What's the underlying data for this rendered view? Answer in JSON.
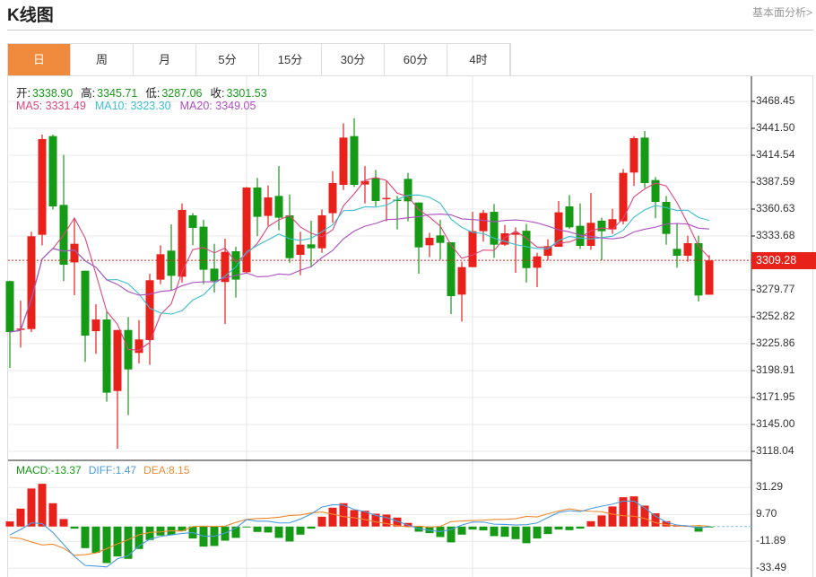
{
  "header": {
    "title": "K线图",
    "link": "基本面分析>"
  },
  "tabs": [
    {
      "label": "日",
      "active": true
    },
    {
      "label": "周"
    },
    {
      "label": "月"
    },
    {
      "label": "5分"
    },
    {
      "label": "15分"
    },
    {
      "label": "30分"
    },
    {
      "label": "60分"
    },
    {
      "label": "4时"
    }
  ],
  "ohlc_legend": {
    "open_label": "开:",
    "open": "3338.90",
    "high_label": "高:",
    "high": "3345.71",
    "low_label": "低:",
    "low": "3287.06",
    "close_label": "收:",
    "close": "3301.53"
  },
  "ma_legend": {
    "ma5": "MA5: 3331.49",
    "ma10": "MA10: 3323.30",
    "ma20": "MA20: 3349.05"
  },
  "macd_legend": {
    "macd": "MACD:-13.37",
    "diff": "DIFF:1.47",
    "dea": "DEA:8.15"
  },
  "colors": {
    "up": "#e8221a",
    "down": "#149a14",
    "ma5": "#e0457b",
    "ma10": "#3cbfd0",
    "ma20": "#ad4fc0",
    "diff": "#4a9be0",
    "dea": "#f08a30",
    "accent": "#f08a3c"
  },
  "current_price": "3309.28",
  "chart_data": {
    "type": "candlestick",
    "price_ticks": [
      "3468.45",
      "3441.50",
      "3414.54",
      "3387.59",
      "3360.63",
      "3333.68",
      "3309.28",
      "3279.77",
      "3252.82",
      "3225.86",
      "3198.91",
      "3171.95",
      "3145.00",
      "3118.04"
    ],
    "price_range": [
      3118.04,
      3468.45
    ],
    "macd_ticks": [
      "31.29",
      "9.70",
      "-11.89",
      "-33.49"
    ],
    "macd_range": [
      -33.49,
      31.29
    ],
    "ohlc": [
      [
        3288.5,
        3289,
        3201.6,
        3237.5
      ],
      [
        3240.5,
        3269,
        3222,
        3241
      ],
      [
        3240.5,
        3337.9,
        3237.5,
        3333.4
      ],
      [
        3334.9,
        3435.2,
        3324.4,
        3430.7
      ],
      [
        3433.7,
        3435.2,
        3360.3,
        3363.3
      ],
      [
        3364.8,
        3414.9,
        3288.5,
        3304.9
      ],
      [
        3307.3,
        3351.3,
        3274.4,
        3325.9
      ],
      [
        3298.9,
        3299,
        3207.6,
        3233.9
      ],
      [
        3238.4,
        3265.4,
        3215.7,
        3250.1
      ],
      [
        3250.1,
        3257.9,
        3167.8,
        3176.8
      ],
      [
        3178.5,
        3239.6,
        3120.7,
        3239.6
      ],
      [
        3239.6,
        3252.5,
        3154.3,
        3200.1
      ],
      [
        3216.6,
        3249.5,
        3206.1,
        3230.1
      ],
      [
        3229.5,
        3296,
        3204.6,
        3289.4
      ],
      [
        3290,
        3324.4,
        3285.5,
        3315.4
      ],
      [
        3319,
        3345.3,
        3279.5,
        3293.8
      ],
      [
        3292.9,
        3366.3,
        3287,
        3359.8
      ],
      [
        3354.4,
        3356.7,
        3324.4,
        3341.8
      ],
      [
        3343,
        3349.9,
        3285.5,
        3299.9
      ],
      [
        3301,
        3325.9,
        3277.1,
        3288.5
      ],
      [
        3287.6,
        3331,
        3245.6,
        3317.8
      ],
      [
        3318.4,
        3322.9,
        3272,
        3290
      ],
      [
        3297.4,
        3382.8,
        3296.8,
        3382.2
      ],
      [
        3382.2,
        3391.8,
        3333.4,
        3352.9
      ],
      [
        3353.8,
        3384.3,
        3343.9,
        3372.3
      ],
      [
        3373.8,
        3403.8,
        3339.4,
        3352
      ],
      [
        3354.4,
        3375.3,
        3307,
        3311.5
      ],
      [
        3314.8,
        3337.9,
        3294.4,
        3325
      ],
      [
        3325.3,
        3349,
        3302.5,
        3321.4
      ],
      [
        3321.4,
        3360.3,
        3316.9,
        3354.4
      ],
      [
        3356.5,
        3398.7,
        3346.9,
        3386.7
      ],
      [
        3384.9,
        3446.6,
        3379.8,
        3432.2
      ],
      [
        3433.7,
        3451.7,
        3382.8,
        3384.9
      ],
      [
        3385.2,
        3403.8,
        3366.3,
        3388.8
      ],
      [
        3391.8,
        3399.9,
        3363.3,
        3368.7
      ],
      [
        3370.8,
        3388.8,
        3348.4,
        3371.8
      ],
      [
        3370,
        3373.8,
        3340.3,
        3368.7
      ],
      [
        3390.9,
        3396.9,
        3348.4,
        3368.4
      ],
      [
        3367.2,
        3367.2,
        3295.9,
        3322.3
      ],
      [
        3324.4,
        3336.9,
        3312.4,
        3331.9
      ],
      [
        3334.3,
        3349.9,
        3310,
        3326.8
      ],
      [
        3327.4,
        3327.4,
        3255.5,
        3273.5
      ],
      [
        3275,
        3307.9,
        3248,
        3302.5
      ],
      [
        3302.5,
        3357.9,
        3302.5,
        3338.5
      ],
      [
        3338.5,
        3359.8,
        3328,
        3356.8
      ],
      [
        3357.9,
        3365.7,
        3311.8,
        3325
      ],
      [
        3325,
        3344.8,
        3323.8,
        3336.4
      ],
      [
        3334.9,
        3342.4,
        3296.8,
        3337
      ],
      [
        3338.9,
        3345.71,
        3287.06,
        3301.53
      ],
      [
        3301.9,
        3316.9,
        3282.5,
        3313.3
      ],
      [
        3313.9,
        3330.4,
        3309.4,
        3323.5
      ],
      [
        3322.9,
        3368.7,
        3322.9,
        3357.4
      ],
      [
        3363.3,
        3374.7,
        3340.9,
        3342.4
      ],
      [
        3343.9,
        3366.3,
        3320.8,
        3323.8
      ],
      [
        3323.8,
        3376.8,
        3319.9,
        3346.9
      ],
      [
        3349,
        3352,
        3309.4,
        3338.5
      ],
      [
        3340.3,
        3360.9,
        3335.8,
        3350.5
      ],
      [
        3348.4,
        3400.8,
        3345.4,
        3396.9
      ],
      [
        3397.2,
        3433.7,
        3383.7,
        3431.6
      ],
      [
        3432.2,
        3438.8,
        3381.9,
        3386.7
      ],
      [
        3389.7,
        3392.7,
        3351.4,
        3367.8
      ],
      [
        3367.8,
        3373.8,
        3325,
        3335.8
      ],
      [
        3320.8,
        3345.9,
        3301.9,
        3313.9
      ],
      [
        3313.9,
        3334,
        3307.9,
        3326.5
      ],
      [
        3326.5,
        3334,
        3268.1,
        3274.1
      ],
      [
        3274.9,
        3314.5,
        3274.9,
        3309.28
      ]
    ],
    "macd": [
      4.1,
      14.4,
      30.5,
      34.3,
      18.7,
      6,
      -1.7,
      -17.3,
      -21.1,
      -29.3,
      -24,
      -25.9,
      -18,
      -10.8,
      -7.2,
      -6.7,
      -3.6,
      -9.6,
      -16.1,
      -15.6,
      -11.3,
      -9.1,
      -0.5,
      -4.3,
      -4.8,
      -9.1,
      -12,
      -6.5,
      -1.7,
      7.9,
      15.1,
      18.7,
      13.2,
      12.7,
      10.3,
      9.6,
      7.2,
      2.9,
      -4.1,
      -5.3,
      -8.4,
      -12.7,
      -6.5,
      -2.4,
      -3.1,
      -7.7,
      -8.2,
      -10.1,
      -13.37,
      -9.6,
      -6,
      -2.4,
      -2.9,
      -1.7,
      4.3,
      8.9,
      16.1,
      23.5,
      24.2,
      16.8,
      10.6,
      4.3,
      1.2,
      0.5,
      -4.1,
      -0.5
    ],
    "diff": [
      -6.7,
      -2.4,
      2.9,
      2.4,
      -4.8,
      -14.4,
      -24,
      -31.2,
      -31.7,
      -32.4,
      -25.9,
      -23.5,
      -15.6,
      -10.1,
      -7.9,
      -6.7,
      -5.5,
      -4.8,
      -7.7,
      -7.7,
      -5.3,
      -1.2,
      5.5,
      4.3,
      4.3,
      2.9,
      2.9,
      6,
      10.1,
      15.6,
      17.5,
      17.3,
      13.7,
      12,
      8.9,
      7.2,
      4.3,
      1.2,
      -1.7,
      -3.1,
      -4.1,
      -2.4,
      1.2,
      3.6,
      3.6,
      1.9,
      1.7,
      1.2,
      1.47,
      2.9,
      7.2,
      11.3,
      12.7,
      12,
      14.4,
      16.3,
      18,
      20.4,
      20.4,
      14.9,
      8.4,
      3.6,
      1.2,
      0.5,
      -1.2,
      0
    ]
  }
}
